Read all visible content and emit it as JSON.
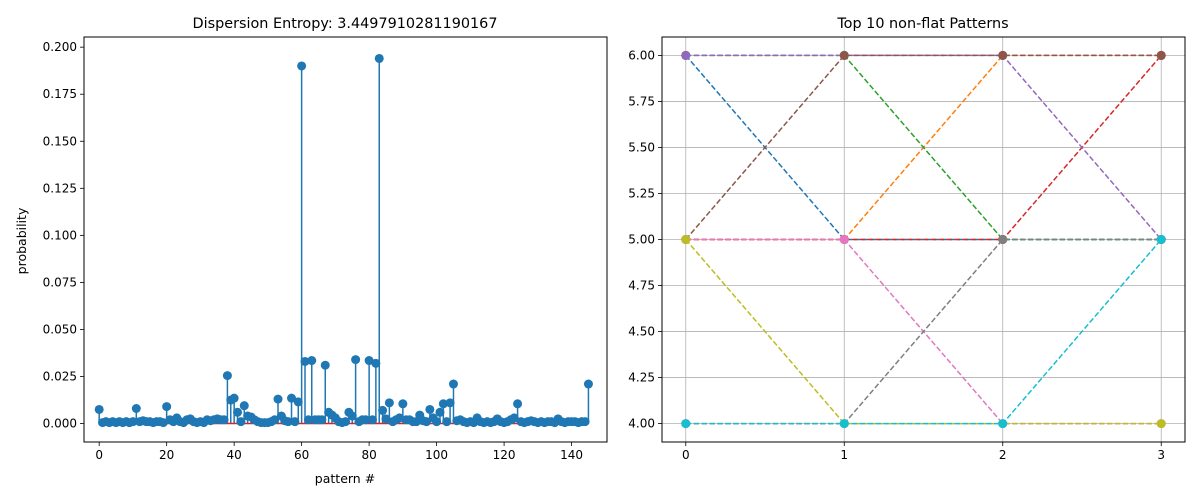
{
  "chart_data": [
    {
      "type": "stem",
      "title": "Dispersion Entropy: 3.4497910281190167",
      "xlabel": "pattern #",
      "ylabel": "probability",
      "xlim": [
        -4.5,
        150.5
      ],
      "ylim": [
        -0.0098,
        0.2054
      ],
      "xticks": [
        0,
        20,
        40,
        60,
        80,
        100,
        120,
        140
      ],
      "xtick_labels": [
        "0",
        "20",
        "40",
        "60",
        "80",
        "100",
        "120",
        "140"
      ],
      "yticks": [
        0.0,
        0.025,
        0.05,
        0.075,
        0.1,
        0.125,
        0.15,
        0.175,
        0.2
      ],
      "ytick_labels": [
        "0.000",
        "0.025",
        "0.050",
        "0.075",
        "0.100",
        "0.125",
        "0.150",
        "0.175",
        "0.200"
      ],
      "grid": false,
      "colors": {
        "stem": "#1f77b4",
        "baseline": "#d62728"
      },
      "x": [
        0,
        1,
        2,
        3,
        4,
        5,
        6,
        7,
        8,
        9,
        10,
        11,
        12,
        13,
        14,
        15,
        16,
        17,
        18,
        19,
        20,
        21,
        22,
        23,
        24,
        25,
        26,
        27,
        28,
        29,
        30,
        31,
        32,
        33,
        34,
        35,
        36,
        37,
        38,
        39,
        40,
        41,
        42,
        43,
        44,
        45,
        46,
        47,
        48,
        49,
        50,
        51,
        52,
        53,
        54,
        55,
        56,
        57,
        58,
        59,
        60,
        61,
        62,
        63,
        64,
        65,
        66,
        67,
        68,
        69,
        70,
        71,
        72,
        73,
        74,
        75,
        76,
        77,
        78,
        79,
        80,
        81,
        82,
        83,
        84,
        85,
        86,
        87,
        88,
        89,
        90,
        91,
        92,
        93,
        94,
        95,
        96,
        97,
        98,
        99,
        100,
        101,
        102,
        103,
        104,
        105,
        106,
        107,
        108,
        109,
        110,
        111,
        112,
        113,
        114,
        115,
        116,
        117,
        118,
        119,
        120,
        121,
        122,
        123,
        124,
        125,
        126,
        127,
        128,
        129,
        130,
        131,
        132,
        133,
        134,
        135,
        136,
        137,
        138,
        139,
        140,
        141,
        142,
        143,
        144,
        145
      ],
      "values": [
        0.0075,
        0.0005,
        0.001,
        0.0005,
        0.001,
        0.0005,
        0.001,
        0.0005,
        0.001,
        0.0005,
        0.001,
        0.008,
        0.001,
        0.0015,
        0.001,
        0.001,
        0.0005,
        0.001,
        0.001,
        0.0005,
        0.009,
        0.002,
        0.001,
        0.003,
        0.001,
        0.0005,
        0.002,
        0.0025,
        0.001,
        0.0005,
        0.001,
        0.0005,
        0.002,
        0.0015,
        0.002,
        0.0025,
        0.002,
        0.002,
        0.0255,
        0.0125,
        0.0135,
        0.006,
        0.001,
        0.0095,
        0.004,
        0.0035,
        0.002,
        0.001,
        0.0005,
        0.0005,
        0.0005,
        0.001,
        0.002,
        0.013,
        0.004,
        0.0015,
        0.001,
        0.0135,
        0.001,
        0.0115,
        0.19,
        0.033,
        0.002,
        0.0335,
        0.002,
        0.002,
        0.002,
        0.031,
        0.006,
        0.0045,
        0.003,
        0.001,
        0.0005,
        0.001,
        0.006,
        0.004,
        0.034,
        0.001,
        0.002,
        0.002,
        0.0335,
        0.002,
        0.032,
        0.194,
        0.007,
        0.0025,
        0.011,
        0.001,
        0.002,
        0.003,
        0.0105,
        0.002,
        0.002,
        0.001,
        0.001,
        0.0045,
        0.0015,
        0.001,
        0.0075,
        0.003,
        0.001,
        0.006,
        0.0105,
        0.001,
        0.011,
        0.021,
        0.0015,
        0.002,
        0.001,
        0.0005,
        0.001,
        0.0005,
        0.003,
        0.001,
        0.0005,
        0.001,
        0.0005,
        0.001,
        0.0025,
        0.001,
        0.0005,
        0.001,
        0.002,
        0.003,
        0.0105,
        0.001,
        0.0005,
        0.001,
        0.0015,
        0.001,
        0.0005,
        0.001,
        0.0005,
        0.001,
        0.001,
        0.0005,
        0.0025,
        0.001,
        0.0005,
        0.001,
        0.001,
        0.001,
        0.0005,
        0.001,
        0.001,
        0.021
      ]
    },
    {
      "type": "line",
      "title": "Top 10 non-flat Patterns",
      "xlim": [
        -0.15,
        3.15
      ],
      "ylim": [
        3.9,
        6.1
      ],
      "xticks": [
        0,
        1,
        2,
        3
      ],
      "xtick_labels": [
        "0",
        "1",
        "2",
        "3"
      ],
      "yticks": [
        4.0,
        4.25,
        4.5,
        4.75,
        5.0,
        5.25,
        5.5,
        5.75,
        6.0
      ],
      "ytick_labels": [
        "4.00",
        "4.25",
        "4.50",
        "4.75",
        "5.00",
        "5.25",
        "5.50",
        "5.75",
        "6.00"
      ],
      "grid": true,
      "line_style": "dashed",
      "marker": "circle",
      "x": [
        0,
        1,
        2,
        3
      ],
      "series": [
        {
          "values": [
            6,
            5,
            5,
            5
          ],
          "color": "#1f77b4"
        },
        {
          "values": [
            5,
            5,
            6,
            6
          ],
          "color": "#ff7f0e"
        },
        {
          "values": [
            6,
            6,
            5,
            5
          ],
          "color": "#2ca02c"
        },
        {
          "values": [
            5,
            5,
            5,
            6
          ],
          "color": "#d62728"
        },
        {
          "values": [
            6,
            6,
            6,
            5
          ],
          "color": "#9467bd"
        },
        {
          "values": [
            5,
            6,
            6,
            6
          ],
          "color": "#8c564b"
        },
        {
          "values": [
            5,
            5,
            4,
            4
          ],
          "color": "#e377c2"
        },
        {
          "values": [
            4,
            4,
            5,
            5
          ],
          "color": "#7f7f7f"
        },
        {
          "values": [
            5,
            4,
            4,
            4
          ],
          "color": "#bcbd22"
        },
        {
          "values": [
            4,
            4,
            4,
            5
          ],
          "color": "#17becf"
        }
      ]
    }
  ]
}
